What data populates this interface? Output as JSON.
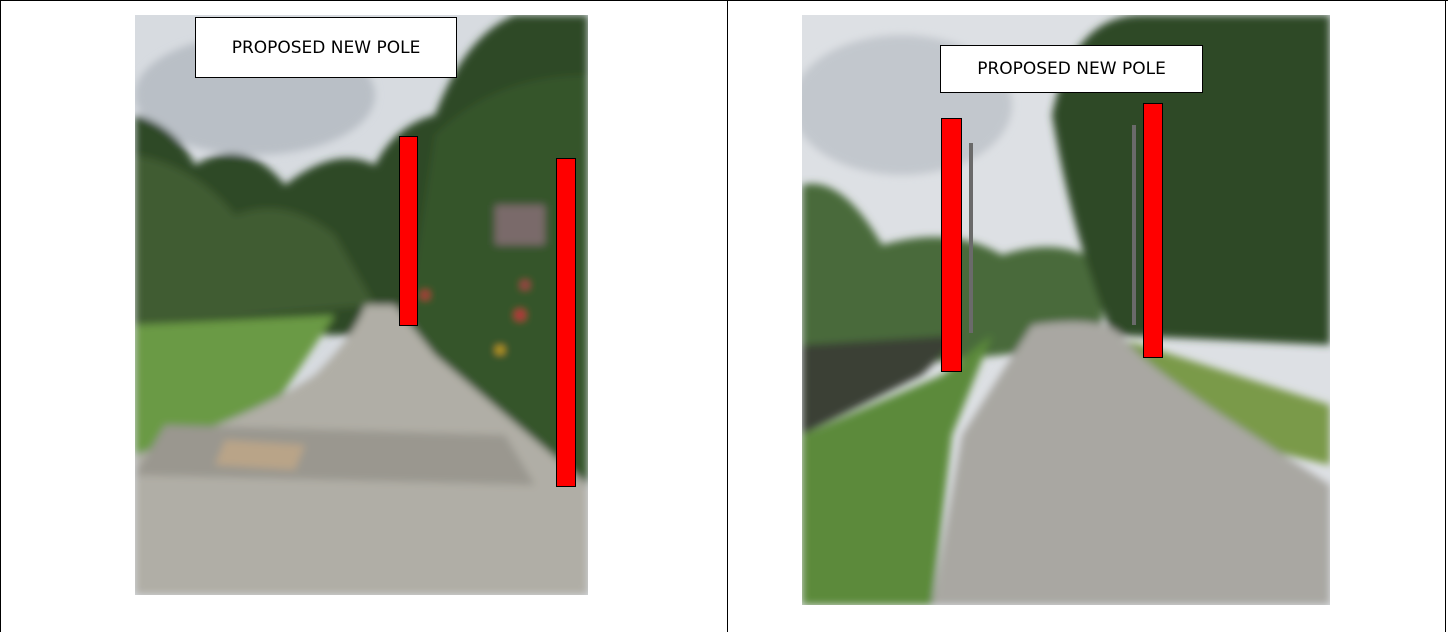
{
  "cells": [
    {
      "label": "PROPOSED NEW POLE"
    },
    {
      "label": "PROPOSED NEW POLE"
    }
  ]
}
